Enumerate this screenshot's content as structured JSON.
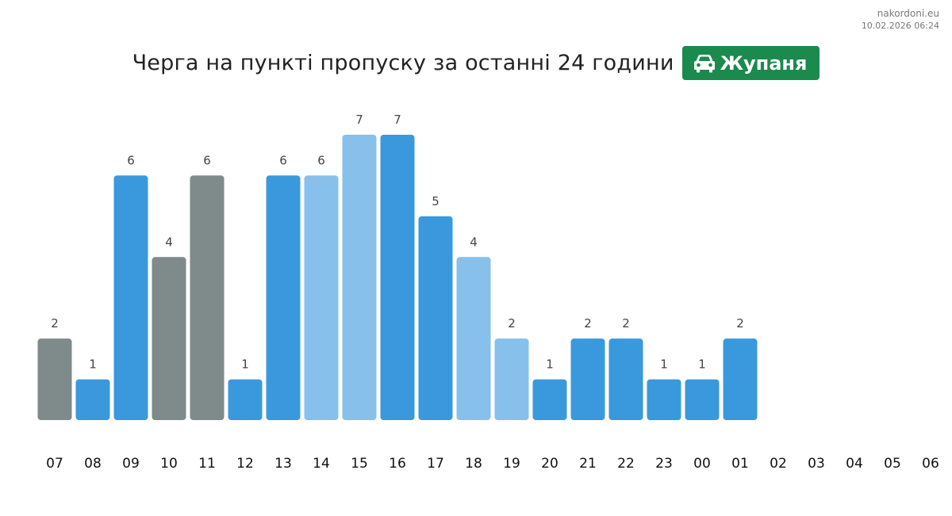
{
  "source": {
    "site": "nakordoni.eu",
    "timestamp": "10.02.2026 06:24"
  },
  "header": {
    "title": "Черга на пункті пропуску за останні 24 години",
    "checkpoint": "Жупаня",
    "checkpoint_icon": "car-icon"
  },
  "colors": {
    "blue": "#3a99dc",
    "light_blue": "#87c0ea",
    "gray": "#7f8a8a",
    "badge": "#1a8a4d"
  },
  "chart_data": {
    "type": "bar",
    "title": "Черга на пункті пропуску за останні 24 години",
    "xlabel": "",
    "ylabel": "",
    "ylim": [
      0,
      7
    ],
    "grid": false,
    "categories": [
      "07",
      "08",
      "09",
      "10",
      "11",
      "12",
      "13",
      "14",
      "15",
      "16",
      "17",
      "18",
      "19",
      "20",
      "21",
      "22",
      "23",
      "00",
      "01",
      "02",
      "03",
      "04",
      "05",
      "06"
    ],
    "values": [
      2,
      1,
      6,
      4,
      6,
      1,
      6,
      6,
      7,
      7,
      5,
      4,
      2,
      1,
      2,
      2,
      1,
      1,
      2,
      null,
      null,
      null,
      null,
      null
    ],
    "bar_colors": [
      "gray",
      "blue",
      "blue",
      "gray",
      "gray",
      "blue",
      "blue",
      "light_blue",
      "light_blue",
      "blue",
      "blue",
      "light_blue",
      "light_blue",
      "blue",
      "blue",
      "blue",
      "blue",
      "blue",
      "blue",
      null,
      null,
      null,
      null,
      null
    ]
  }
}
